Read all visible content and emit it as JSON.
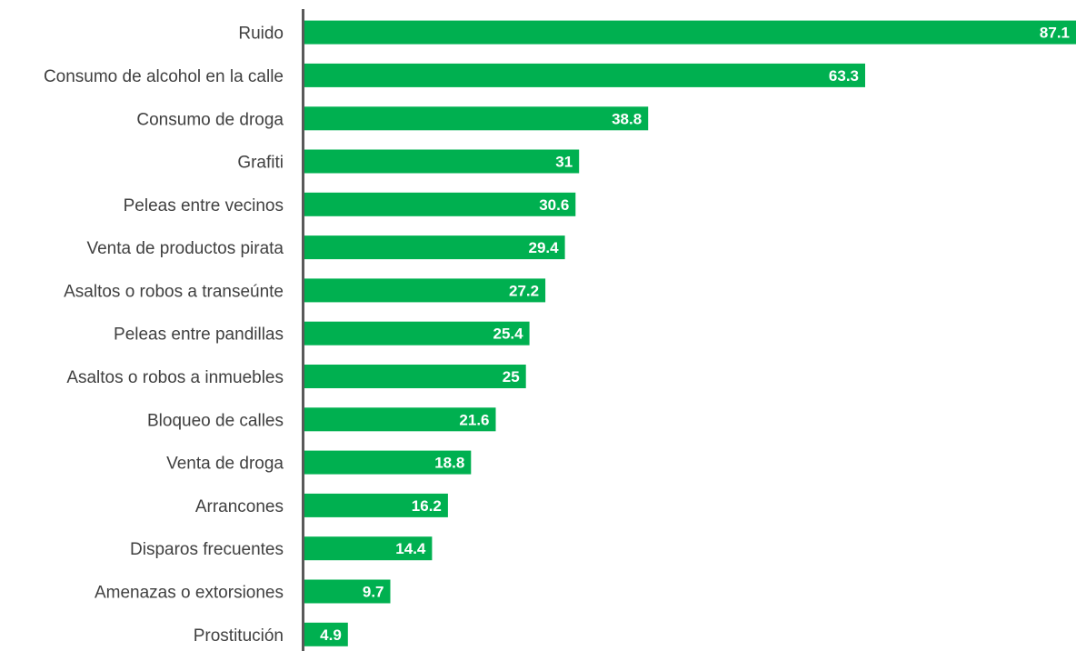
{
  "chart_data": {
    "type": "bar",
    "orientation": "horizontal",
    "categories": [
      "Ruido",
      "Consumo de alcohol en la calle",
      "Consumo de droga",
      "Grafiti",
      "Peleas entre vecinos",
      "Venta de productos pirata",
      "Asaltos o robos a transeúnte",
      "Peleas entre pandillas",
      "Asaltos o robos a inmuebles",
      "Bloqueo de calles",
      "Venta de droga",
      "Arrancones",
      "Disparos frecuentes",
      "Amenazas o extorsiones",
      "Prostitución"
    ],
    "values": [
      87.1,
      63.3,
      38.8,
      31,
      30.6,
      29.4,
      27.2,
      25.4,
      25,
      21.6,
      18.8,
      16.2,
      14.4,
      9.7,
      4.9
    ],
    "xlim": [
      0,
      87.1
    ],
    "bar_color": "#00b050",
    "label_color": "#ffffff",
    "axis_color": "#595959",
    "grid": false,
    "legend": "none"
  }
}
